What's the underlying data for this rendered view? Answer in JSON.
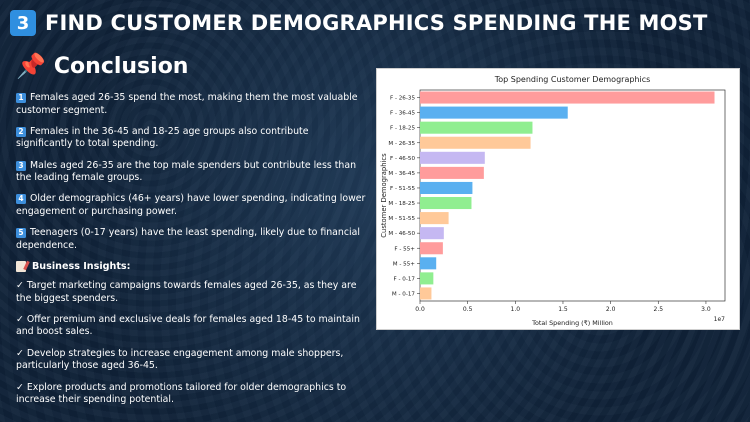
{
  "header": {
    "badge": "3",
    "title": "FIND CUSTOMER DEMOGRAPHICS SPENDING THE MOST"
  },
  "conclusion": {
    "icon": "pushpin-icon",
    "title": "Conclusion",
    "points": [
      {
        "num": "1",
        "text": "Females aged 26-35 spend the most, making them the most valuable customer segment."
      },
      {
        "num": "2",
        "text": "Females in the 36-45 and 18-25 age groups also contribute significantly to total spending."
      },
      {
        "num": "3",
        "text": "Males aged 26-35 are the top male spenders but contribute less than the leading female groups."
      },
      {
        "num": "4",
        "text": "Older demographics (46+ years) have lower spending, indicating lower engagement or purchasing power."
      },
      {
        "num": "5",
        "text": "Teenagers (0-17 years) have the least spending, likely due to financial dependence."
      }
    ]
  },
  "insights": {
    "icon": "memo-icon",
    "title": "Business Insights:",
    "items": [
      "Target marketing campaigns towards females aged 26-35, as they are the biggest spenders.",
      "Offer premium and exclusive deals for females aged 18-45 to maintain and boost sales.",
      "Develop strategies to increase engagement among male shoppers, particularly those aged 36-45.",
      "Explore products and promotions tailored for older demographics to increase their spending potential."
    ],
    "check": "✓"
  },
  "chart_data": {
    "type": "bar",
    "orientation": "horizontal",
    "title": "Top Spending Customer Demographics",
    "xlabel": "Total Spending (₹) Million",
    "ylabel": "Customer Demographics",
    "scale_label": "1e7",
    "xlim": [
      0,
      3.2
    ],
    "xticks": [
      "0.0",
      "0.5",
      "1.0",
      "1.5",
      "2.0",
      "2.5",
      "3.0"
    ],
    "xtick_values": [
      0,
      0.5,
      1.0,
      1.5,
      2.0,
      2.5,
      3.0
    ],
    "categories": [
      "F - 26-35",
      "F - 36-45",
      "F - 18-25",
      "M - 26-35",
      "F - 46-50",
      "M - 36-45",
      "F - 51-55",
      "M - 18-25",
      "M - 51-55",
      "M - 46-50",
      "F - 55+",
      "M - 55+",
      "F - 0-17",
      "M - 0-17"
    ],
    "values": [
      3.09,
      1.55,
      1.18,
      1.16,
      0.68,
      0.67,
      0.55,
      0.54,
      0.3,
      0.25,
      0.24,
      0.17,
      0.14,
      0.12
    ],
    "colors": [
      "#ff9c9c",
      "#5ab0f0",
      "#90ee90",
      "#ffc999",
      "#c5b8f2",
      "#ff9c9c",
      "#5ab0f0",
      "#90ee90",
      "#ffc999",
      "#c5b8f2",
      "#ff9c9c",
      "#5ab0f0",
      "#90ee90",
      "#ffc999"
    ],
    "grid": false,
    "legend": "none"
  }
}
